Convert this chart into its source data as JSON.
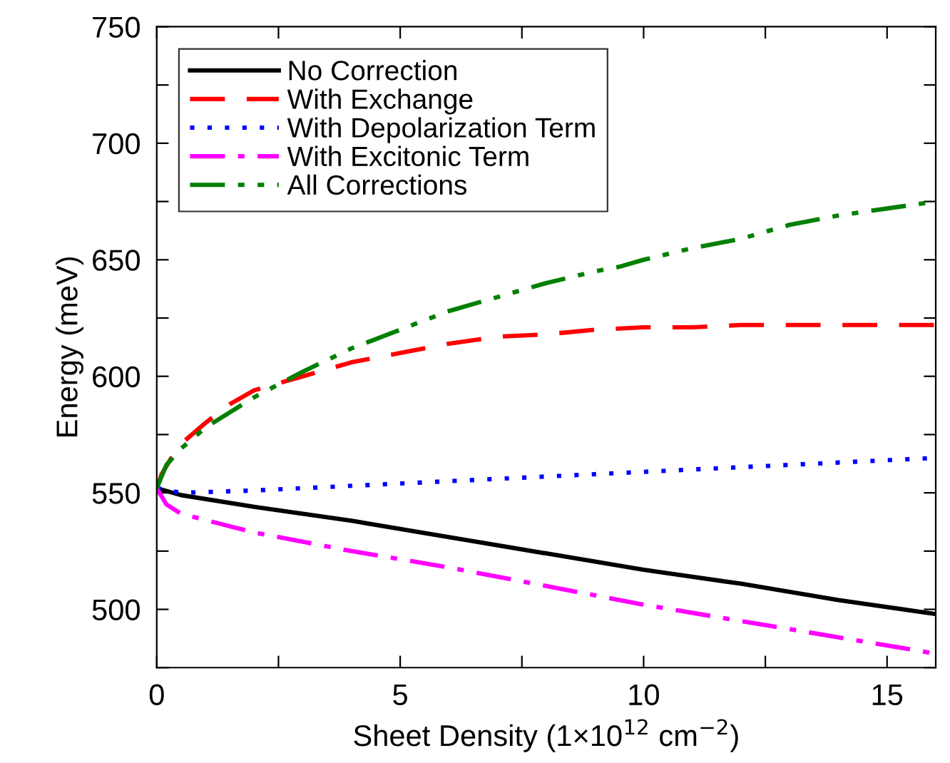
{
  "chart_data": {
    "type": "line",
    "xlabel": "Sheet Density (1×10$^{12}$ cm$^{−2}$)",
    "ylabel": "Energy (meV)",
    "xlim": [
      0,
      16
    ],
    "ylim": [
      475,
      750
    ],
    "xticks": [
      0,
      {
        "value": 2.5,
        "label": null
      },
      5,
      {
        "value": 7.5,
        "label": null
      },
      10,
      {
        "value": 12.5,
        "label": null
      },
      15
    ],
    "yticks": [
      {
        "value": 475,
        "label": null
      },
      500,
      {
        "value": 525,
        "label": null
      },
      550,
      {
        "value": 575,
        "label": null
      },
      600,
      {
        "value": 625,
        "label": null
      },
      650,
      {
        "value": 675,
        "label": null
      },
      700,
      {
        "value": 725,
        "label": null
      },
      750
    ],
    "grid": false,
    "legend": "top left",
    "marker": "none",
    "series": [
      {
        "name": "No Correction",
        "color": "#000000",
        "line_style": "solid",
        "x": [
          0,
          0.5,
          2,
          4,
          6,
          8,
          10,
          12,
          14,
          16
        ],
        "values": [
          552,
          549,
          544,
          538,
          531,
          524,
          517,
          511,
          504,
          498
        ]
      },
      {
        "name": "With Exchange",
        "color": "#ff0000",
        "line_style": "dashed",
        "x": [
          0,
          0.1,
          0.3,
          0.5,
          1,
          1.5,
          2,
          3,
          4,
          5,
          6,
          7,
          8,
          9,
          10,
          11,
          12,
          14,
          16
        ],
        "values": [
          552,
          558,
          565,
          571,
          580,
          588,
          594,
          600,
          606,
          610,
          614,
          617,
          618,
          620,
          621,
          621,
          622,
          622,
          622
        ]
      },
      {
        "name": "With Depolarization Term",
        "color": "#0000ff",
        "line_style": "dotted",
        "x": [
          0,
          0.5,
          2,
          4,
          6,
          8,
          10,
          12,
          14,
          16
        ],
        "values": [
          552,
          550,
          551,
          553,
          555,
          557,
          559,
          561,
          563,
          565
        ]
      },
      {
        "name": "With Excitonic Term",
        "color": "#ff00ff",
        "line_style": "dashdot",
        "x": [
          0,
          0.2,
          0.5,
          2,
          4,
          6,
          8,
          10,
          12,
          14,
          16
        ],
        "values": [
          552,
          545,
          541,
          533,
          525,
          518,
          510,
          502,
          495,
          488,
          481
        ]
      },
      {
        "name": "All Corrections",
        "color": "#008000",
        "line_style": "dashdotdot",
        "x": [
          0,
          0.2,
          0.5,
          1,
          2,
          3,
          4,
          5,
          6,
          7,
          8,
          9,
          9.5,
          10,
          11,
          12,
          13,
          14,
          15,
          16
        ],
        "values": [
          552,
          562,
          569,
          578,
          591,
          602,
          612,
          620,
          628,
          634,
          640,
          645,
          647,
          650,
          655,
          659,
          665,
          669,
          672,
          675
        ]
      }
    ]
  }
}
